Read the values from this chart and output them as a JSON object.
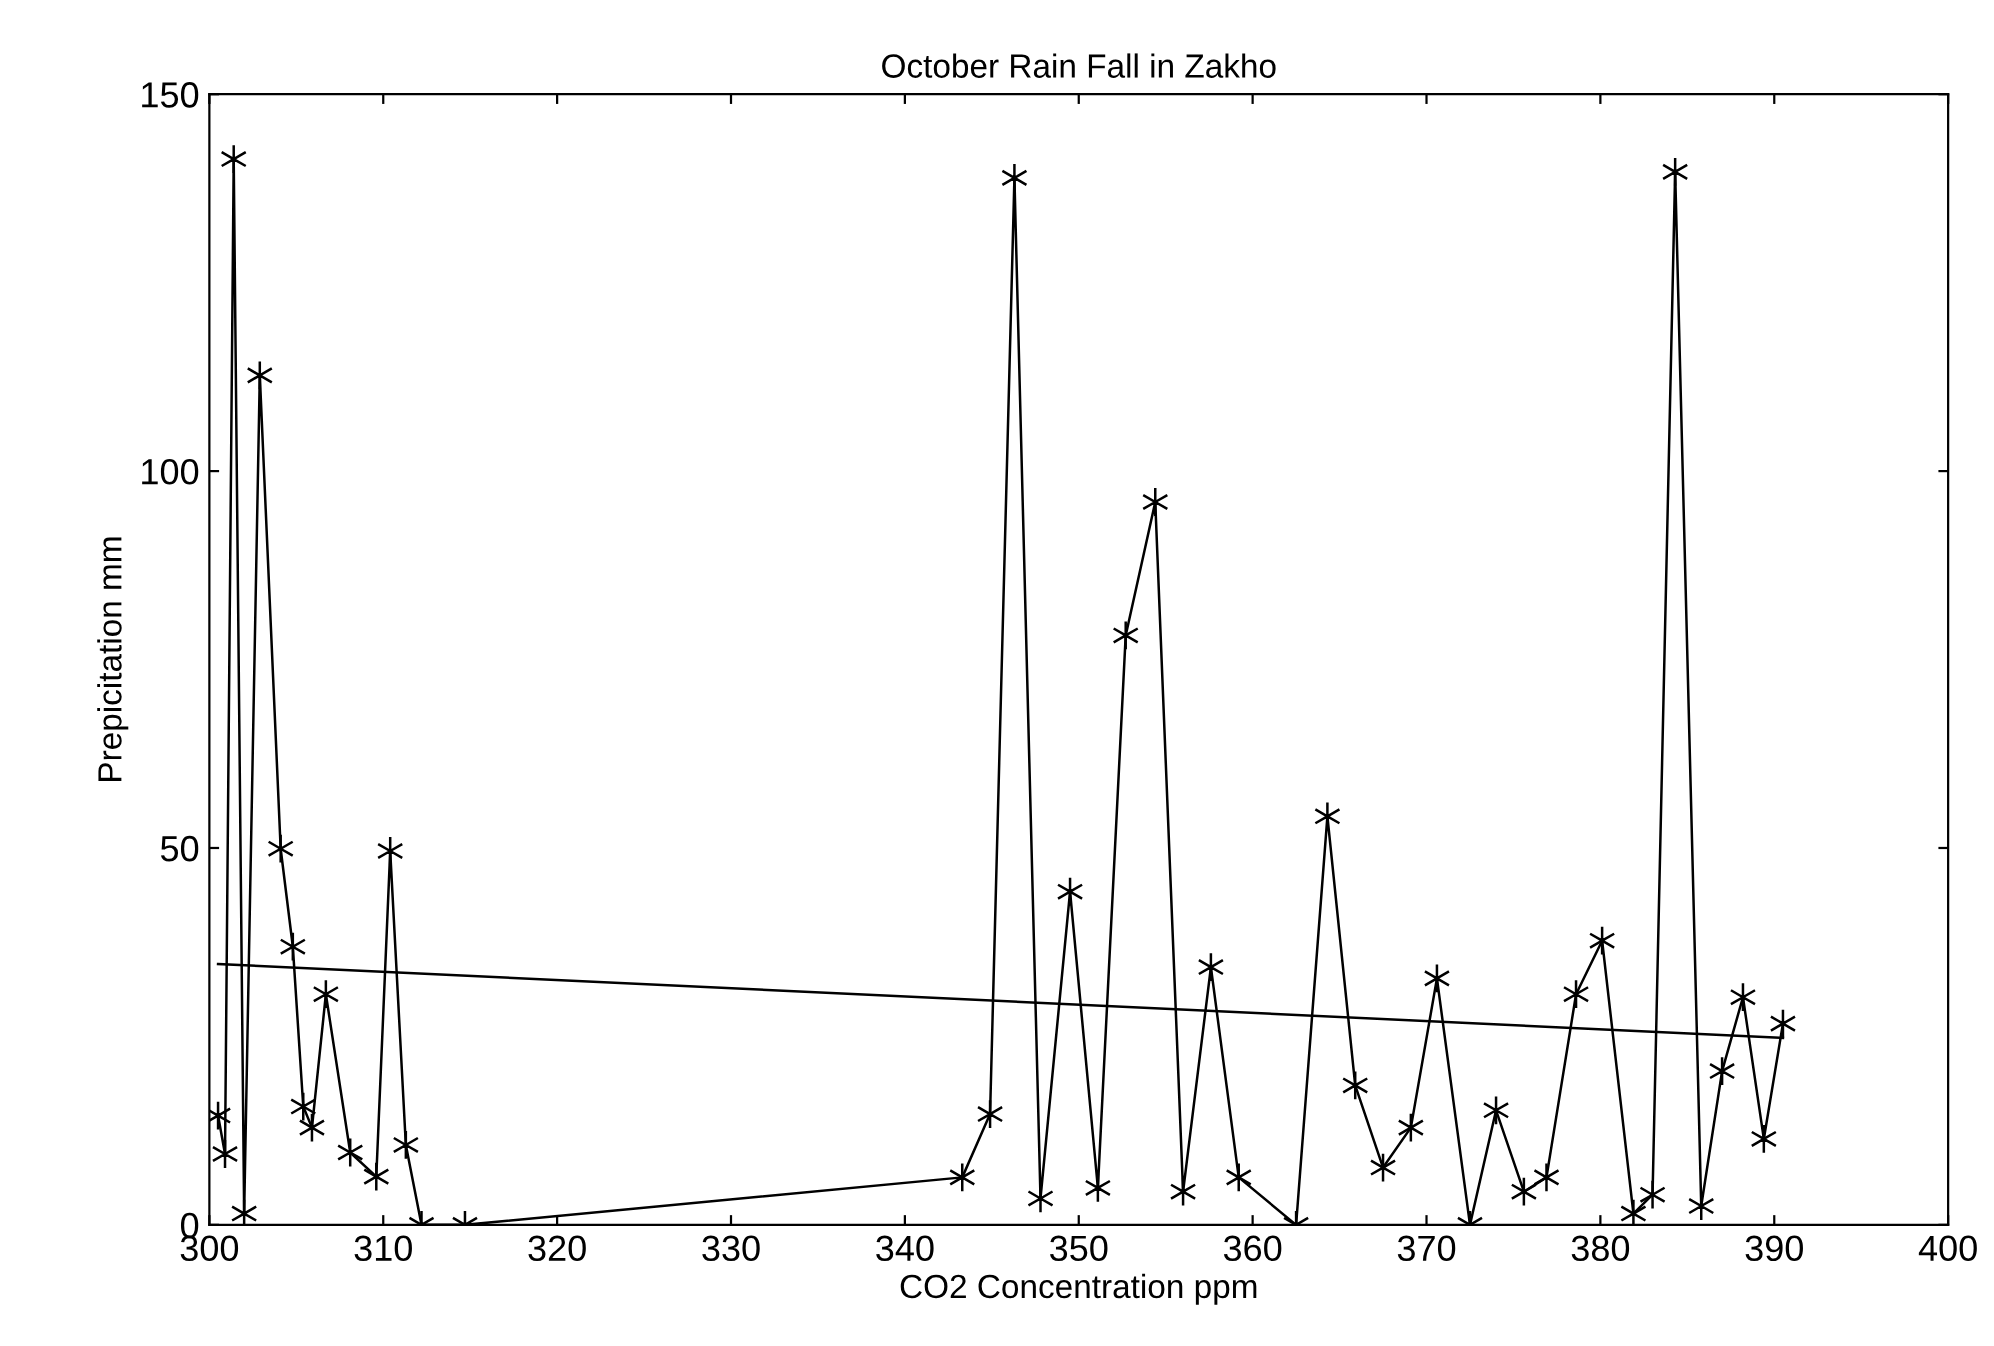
{
  "chart_data": {
    "type": "line",
    "title": "October Rain Fall in Zakho",
    "xlabel": "CO2 Concentration ppm",
    "ylabel": "Prepicitation mm",
    "xlim": [
      300,
      400
    ],
    "ylim": [
      0,
      150
    ],
    "xticks": [
      300,
      310,
      320,
      330,
      340,
      350,
      360,
      370,
      380,
      390,
      400
    ],
    "yticks": [
      0,
      50,
      100,
      150
    ],
    "grid": false,
    "legend": false,
    "series": [
      {
        "color": "#000000",
        "marker": "cross",
        "line_style": "solid",
        "x": [
          300.5,
          300.9,
          301.4,
          302.0,
          302.9,
          304.1,
          304.8,
          305.4,
          305.9,
          306.7,
          308.1,
          309.6,
          310.4,
          311.3,
          312.2,
          314.7,
          343.3,
          344.9,
          346.3,
          347.8,
          349.5,
          351.1,
          352.7,
          354.4,
          356.0,
          357.6,
          359.2,
          362.5,
          364.3,
          365.9,
          367.5,
          369.1,
          370.6,
          372.5,
          374.0,
          375.6,
          376.9,
          378.6,
          380.1,
          381.9,
          383.0,
          384.3,
          385.8,
          387.0,
          388.2,
          389.4,
          390.5
        ],
        "values": [
          14.5,
          9.4,
          141.4,
          1.5,
          112.7,
          49.9,
          36.9,
          15.7,
          12.9,
          30.6,
          9.6,
          6.4,
          49.6,
          10.6,
          0,
          0,
          6.3,
          14.7,
          138.9,
          3.5,
          44.2,
          4.9,
          78.2,
          95.9,
          4.4,
          34.2,
          6.3,
          0,
          54.2,
          18.5,
          7.6,
          12.9,
          32.7,
          0,
          15.2,
          4.4,
          6.3,
          30.6,
          37.7,
          1.5,
          4,
          139.7,
          2.5,
          20.4,
          30.2,
          11.4,
          26.7
        ]
      },
      {
        "color": "#000000",
        "marker": "none",
        "line_style": "solid",
        "x": [
          300.5,
          390.5
        ],
        "values": [
          34.6,
          24.8
        ]
      }
    ]
  }
}
